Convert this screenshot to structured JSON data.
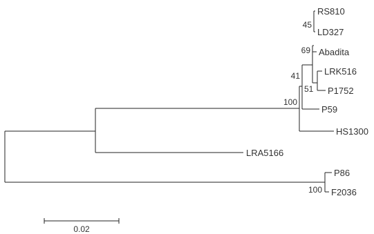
{
  "tree": {
    "taxa": {
      "rs810": "RS810",
      "ld327": "LD327",
      "abadita": "Abadita",
      "lrk516": "LRK516",
      "p1752": "P1752",
      "p59": "P59",
      "hs1300": "HS1300",
      "lra5166": "LRA5166",
      "p86": "P86",
      "f2036": "F2036"
    },
    "bootstrap": {
      "rs810_ld327": "45",
      "abadita_clade": "69",
      "lrk516_p1752": "51",
      "p59_clade": "41",
      "hs1300_clade": "100",
      "p86_f2036": "100"
    }
  },
  "scale_bar": {
    "label": "0.02"
  }
}
